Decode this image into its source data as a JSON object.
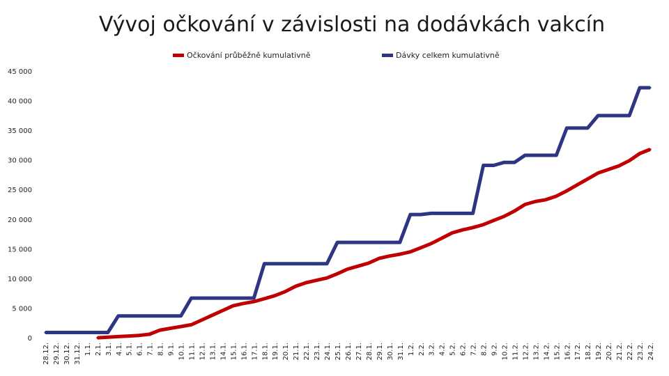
{
  "chart_data": {
    "type": "line",
    "title": "Vývoj očkování v závislosti na dodávkách vakcín",
    "xlabel": "",
    "ylabel": "",
    "ylim": [
      0,
      45000
    ],
    "yticks": [
      "0",
      "5 000",
      "10 000",
      "15 000",
      "20 000",
      "25 000",
      "30 000",
      "35 000",
      "40 000",
      "45 000"
    ],
    "ytick_values": [
      0,
      5000,
      10000,
      15000,
      20000,
      25000,
      30000,
      35000,
      40000,
      45000
    ],
    "grid": false,
    "legend_position": "top",
    "categories": [
      "28.12.",
      "29.12.",
      "30.12.",
      "31.12.",
      "1.1.",
      "2.1.",
      "3.1.",
      "4.1.",
      "5.1.",
      "6.1.",
      "7.1.",
      "8.1.",
      "9.1.",
      "10.1.",
      "11.1.",
      "12.1.",
      "13.1.",
      "14.1.",
      "15.1.",
      "16.1.",
      "17.1.",
      "18.1.",
      "19.1.",
      "20.1.",
      "21.1.",
      "22.1.",
      "23.1.",
      "24.1.",
      "25.1.",
      "26.1.",
      "27.1.",
      "28.1.",
      "29.1.",
      "30.1.",
      "31.1.",
      "1.2.",
      "2.2.",
      "3.2.",
      "4.2.",
      "5.2.",
      "6.2.",
      "7.2.",
      "8.2.",
      "9.2.",
      "10.2.",
      "11.2.",
      "12.2.",
      "13.2.",
      "14.2.",
      "15.2.",
      "16.2.",
      "17.2.",
      "18.2.",
      "19.2.",
      "20.2.",
      "21.2.",
      "22.2.",
      "23.2.",
      "24.2."
    ],
    "series": [
      {
        "name": "Očkování průběžně kumulativně",
        "color": "#c00000",
        "values": [
          null,
          null,
          null,
          null,
          null,
          100,
          200,
          300,
          400,
          500,
          700,
          1400,
          1700,
          2000,
          2300,
          3100,
          3900,
          4700,
          5500,
          5900,
          6200,
          6700,
          7200,
          7900,
          8800,
          9400,
          9800,
          10200,
          10900,
          11700,
          12200,
          12700,
          13500,
          13900,
          14200,
          14600,
          15300,
          16000,
          16900,
          17800,
          18300,
          18700,
          19200,
          19900,
          20600,
          21500,
          22600,
          23100,
          23400,
          24000,
          24900,
          25900,
          26900,
          27900,
          28500,
          29100,
          30000,
          31200,
          31900
        ]
      },
      {
        "name": "Dávky celkem kumulativně",
        "color": "#2e3582",
        "values": [
          1000,
          1000,
          1000,
          1000,
          1000,
          1000,
          1000,
          3800,
          3800,
          3800,
          3800,
          3800,
          3800,
          3800,
          6800,
          6800,
          6800,
          6800,
          6800,
          6800,
          6800,
          12600,
          12600,
          12600,
          12600,
          12600,
          12600,
          12600,
          16200,
          16200,
          16200,
          16200,
          16200,
          16200,
          16200,
          20900,
          20900,
          21100,
          21100,
          21100,
          21100,
          21100,
          29200,
          29200,
          29700,
          29700,
          30900,
          30900,
          30900,
          30900,
          35500,
          35500,
          35500,
          37600,
          37600,
          37600,
          37600,
          42300,
          42300
        ]
      }
    ]
  }
}
